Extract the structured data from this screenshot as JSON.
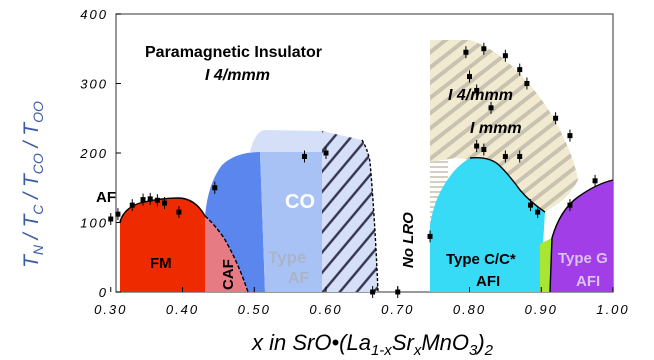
{
  "chart_data": {
    "type": "phase-diagram",
    "title": "",
    "xlabel_parts": [
      "x in SrO•(La",
      "1-x",
      "Sr",
      "x",
      "MnO",
      "3",
      ")",
      "2"
    ],
    "ylabel_parts": [
      "T",
      "N",
      " / T",
      "C",
      " / T",
      "CO",
      " / T",
      "OO"
    ],
    "xlim": [
      0.28,
      1.0
    ],
    "ylim": [
      0,
      400
    ],
    "x_ticks": [
      "0.30",
      "0.40",
      "0.50",
      "0.60",
      "0.70",
      "0.80",
      "0.90",
      "1.00"
    ],
    "y_ticks": [
      "0",
      "100",
      "200",
      "300",
      "400"
    ],
    "grid": false,
    "colors": {
      "FM": "#ee2a00",
      "CAF": "#e77b84",
      "CO": "#5b86ee",
      "TypeAF": "#a9c2f5",
      "CO_top": "#d5e0f8",
      "TypeCC": "#38dbf6",
      "green_sliver": "#a8e632",
      "TypeG": "#a13ee8",
      "tan": "#f2ead0",
      "hatch_grey": "#c8c2b0",
      "hatch_dark": "#34344e",
      "axis_label": "#3b5aa8"
    },
    "region_labels": {
      "paramagnetic": "Paramagnetic Insulator",
      "i4mmm": "I 4/mmm",
      "i4mmm_2": "I 4/mmm",
      "immm": "I mmm",
      "af": "AF",
      "fm": "FM",
      "caf": "CAF",
      "co": "CO",
      "type_af_1": "Type",
      "type_af_2": "AF",
      "no_lro": "No LRO",
      "type_cc_1": "Type C/C*",
      "type_cc_2": "AFI",
      "type_g_1": "Type G",
      "type_g_2": "AFI"
    },
    "series": [
      {
        "name": "",
        "points": [
          [
            0.3,
            105
          ],
          [
            0.31,
            112
          ],
          [
            0.33,
            125
          ],
          [
            0.345,
            133
          ],
          [
            0.355,
            134
          ],
          [
            0.365,
            132
          ],
          [
            0.375,
            128
          ],
          [
            0.395,
            115
          ],
          [
            0.445,
            150
          ],
          [
            0.57,
            195
          ],
          [
            0.6,
            200
          ],
          [
            0.665,
            0
          ],
          [
            0.7,
            0
          ],
          [
            0.745,
            80
          ],
          [
            0.81,
            210
          ],
          [
            0.82,
            205
          ],
          [
            0.85,
            195
          ],
          [
            0.87,
            195
          ],
          [
            0.885,
            125
          ],
          [
            0.895,
            115
          ],
          [
            0.94,
            125
          ],
          [
            0.975,
            160
          ],
          [
            0.82,
            350
          ],
          [
            0.85,
            340
          ],
          [
            0.87,
            320
          ],
          [
            0.88,
            300
          ],
          [
            0.92,
            250
          ],
          [
            0.94,
            225
          ],
          [
            0.795,
            345
          ],
          [
            0.8,
            310
          ],
          [
            0.81,
            290
          ],
          [
            0.83,
            265
          ]
        ]
      }
    ]
  }
}
